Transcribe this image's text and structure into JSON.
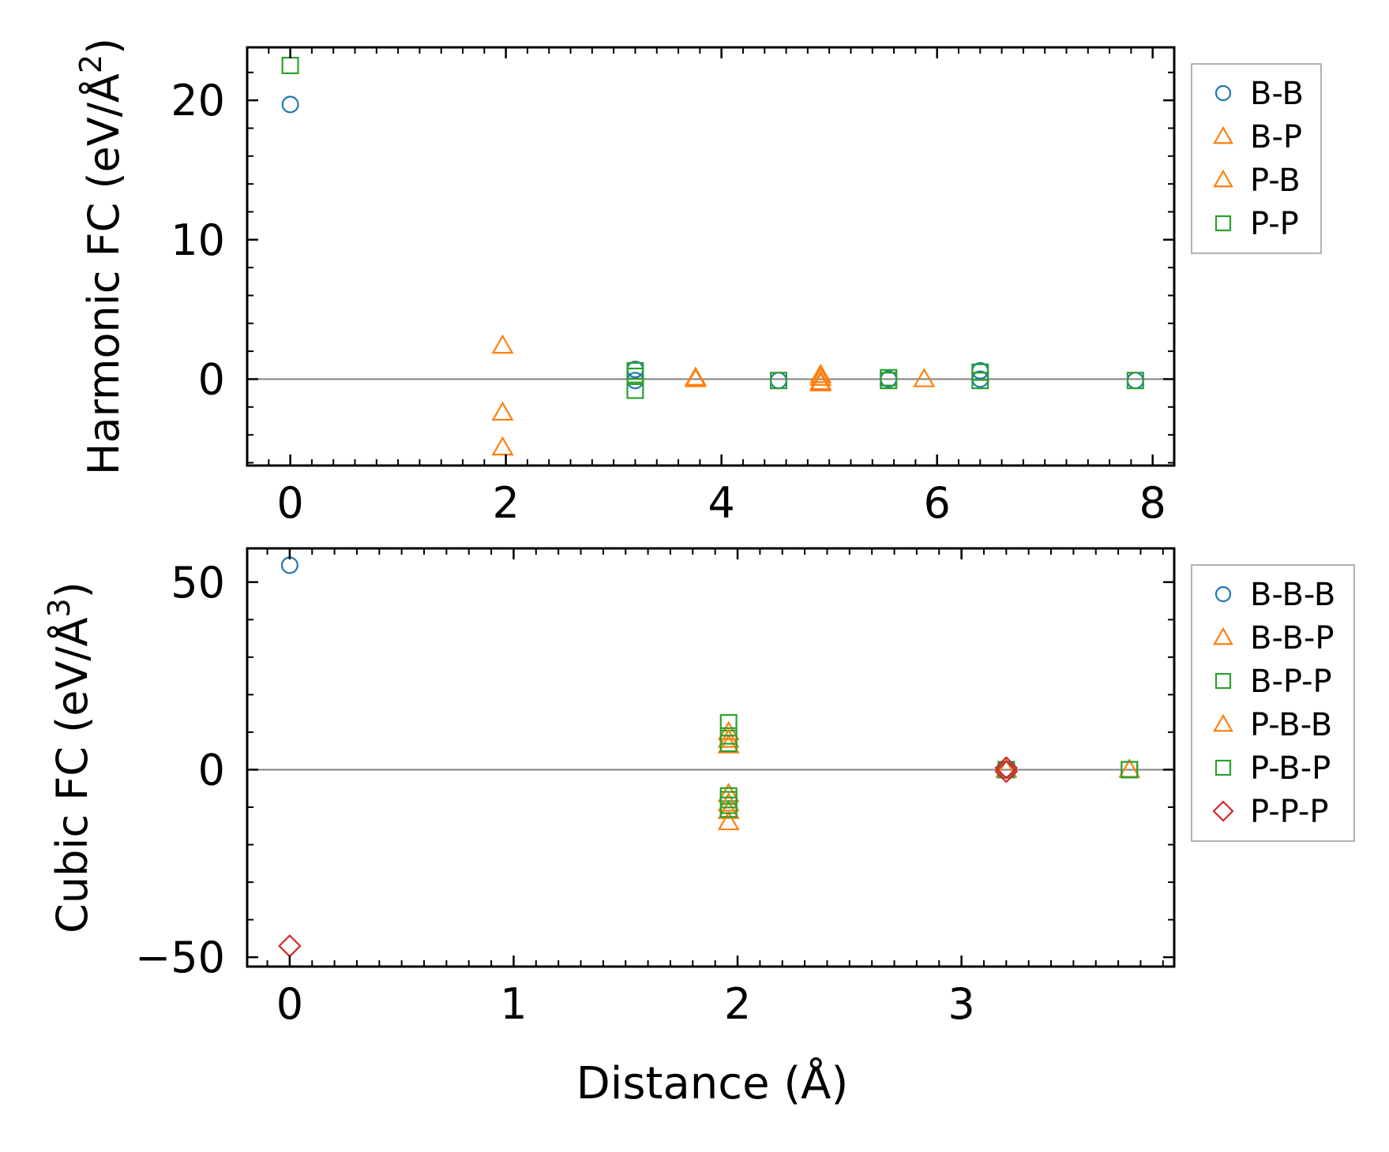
{
  "figure": {
    "xlabel": "Distance (Å)"
  },
  "colors": {
    "blue": "#1f77b4",
    "orange": "#ff7f0e",
    "green": "#2ca02c",
    "red": "#d62728",
    "zero_line": "#808080",
    "axes": "#000000",
    "legend_border": "#999999"
  },
  "chart_data": [
    {
      "type": "scatter",
      "panel": "top",
      "ylabel": "Harmonic FC (eV/Å",
      "ylabel_exponent": "2",
      "ylabel_close": ")",
      "xlim": [
        -0.4,
        8.2
      ],
      "ylim": [
        -6.2,
        23.8
      ],
      "xticks": [
        0,
        2,
        4,
        6,
        8
      ],
      "xtick_labels": [
        "0",
        "2",
        "4",
        "6",
        "8"
      ],
      "xminor": [
        -0.4,
        -0.2,
        0.2,
        0.4,
        0.6,
        0.8,
        1.0,
        1.2,
        1.4,
        1.6,
        1.8,
        2.2,
        2.4,
        2.6,
        2.8,
        3.0,
        3.2,
        3.4,
        3.6,
        3.8,
        4.2,
        4.4,
        4.6,
        4.8,
        5.0,
        5.2,
        5.4,
        5.6,
        5.8,
        6.2,
        6.4,
        6.6,
        6.8,
        7.0,
        7.2,
        7.4,
        7.6,
        7.8,
        8.2
      ],
      "yticks": [
        0,
        10,
        20
      ],
      "ytick_labels": [
        "0",
        "10",
        "20"
      ],
      "yminor": [
        -6,
        -4,
        -2,
        2,
        4,
        6,
        8,
        12,
        14,
        16,
        18,
        22
      ],
      "zero_line": true,
      "legend_position": "outside-right-top",
      "series": [
        {
          "name": "B-B",
          "marker": "circle",
          "color": "#1f77b4",
          "x": [
            0,
            3.2,
            3.2,
            4.53,
            5.55,
            6.4,
            6.4,
            7.84
          ],
          "y": [
            19.7,
            0.7,
            -0.1,
            -0.1,
            0.0,
            0.6,
            0.0,
            -0.1
          ]
        },
        {
          "name": "B-P",
          "marker": "triangle",
          "color": "#ff7f0e",
          "x": [
            1.97,
            1.97,
            1.97,
            3.76,
            4.92,
            4.92,
            5.88
          ],
          "y": [
            2.4,
            -2.4,
            -4.9,
            0.1,
            0.1,
            -0.3,
            0.0
          ]
        },
        {
          "name": "P-B",
          "marker": "triangle",
          "color": "#ff7f0e",
          "x": [
            3.76,
            4.92,
            4.92
          ],
          "y": [
            0.0,
            0.3,
            -0.2
          ]
        },
        {
          "name": "P-P",
          "marker": "square",
          "color": "#2ca02c",
          "x": [
            0,
            3.2,
            3.2,
            3.2,
            4.53,
            5.55,
            5.55,
            6.4,
            6.4,
            7.84
          ],
          "y": [
            22.5,
            0.6,
            0.2,
            -0.8,
            -0.1,
            0.1,
            -0.1,
            0.5,
            -0.1,
            -0.1
          ]
        }
      ]
    },
    {
      "type": "scatter",
      "panel": "bottom",
      "ylabel": "Cubic FC (eV/Å",
      "ylabel_exponent": "3",
      "ylabel_close": ")",
      "xlim": [
        -0.19,
        3.95
      ],
      "ylim": [
        -52.5,
        59
      ],
      "xticks": [
        0,
        1,
        2,
        3
      ],
      "xtick_labels": [
        "0",
        "1",
        "2",
        "3"
      ],
      "xminor": [
        -0.1,
        0.1,
        0.2,
        0.3,
        0.4,
        0.5,
        0.6,
        0.7,
        0.8,
        0.9,
        1.1,
        1.2,
        1.3,
        1.4,
        1.5,
        1.6,
        1.7,
        1.8,
        1.9,
        2.1,
        2.2,
        2.3,
        2.4,
        2.5,
        2.6,
        2.7,
        2.8,
        2.9,
        3.1,
        3.2,
        3.3,
        3.4,
        3.5,
        3.6,
        3.7,
        3.8,
        3.9
      ],
      "yticks": [
        -50,
        0,
        50
      ],
      "ytick_labels": [
        "−50",
        "0",
        "50"
      ],
      "yminor": [
        -40,
        -30,
        -20,
        -10,
        10,
        20,
        30,
        40
      ],
      "zero_line": true,
      "legend_position": "outside-right-top",
      "series": [
        {
          "name": "B-B-B",
          "marker": "circle",
          "color": "#1f77b4",
          "x": [
            0,
            3.2
          ],
          "y": [
            54.5,
            0.0
          ]
        },
        {
          "name": "B-B-P",
          "marker": "triangle",
          "color": "#ff7f0e",
          "x": [
            1.96,
            1.96,
            1.96,
            1.96,
            1.96,
            3.2,
            3.75
          ],
          "y": [
            10.0,
            6.5,
            -6.5,
            -11.0,
            -14.0,
            0.0,
            0.0
          ]
        },
        {
          "name": "B-P-P",
          "marker": "square",
          "color": "#2ca02c",
          "x": [
            1.96,
            1.96,
            1.96,
            1.96,
            3.2,
            3.75
          ],
          "y": [
            12.5,
            9.0,
            -8.0,
            -10.5,
            0.0,
            0.0
          ]
        },
        {
          "name": "P-B-B",
          "marker": "triangle",
          "color": "#ff7f0e",
          "x": [
            1.96,
            1.96,
            3.2
          ],
          "y": [
            8.0,
            -9.0,
            0.0
          ]
        },
        {
          "name": "P-B-P",
          "marker": "square",
          "color": "#2ca02c",
          "x": [
            1.96,
            1.96,
            1.96,
            3.2,
            3.75
          ],
          "y": [
            7.0,
            -7.0,
            -9.5,
            0.0,
            0.0
          ]
        },
        {
          "name": "P-P-P",
          "marker": "diamond",
          "color": "#d62728",
          "x": [
            0,
            3.2,
            3.2
          ],
          "y": [
            -47.0,
            0.5,
            -0.5
          ]
        }
      ]
    }
  ]
}
